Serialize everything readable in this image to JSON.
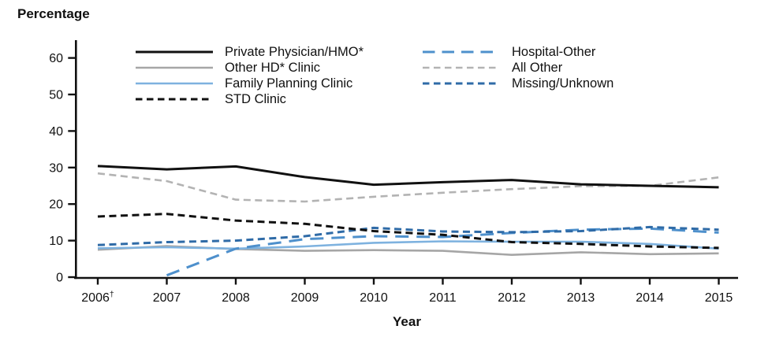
{
  "figure": {
    "y_axis_title": "Percentage",
    "x_axis_title": "Year"
  },
  "chart_data": {
    "type": "line",
    "title": "Percentage",
    "xlabel": "Year",
    "ylabel": "Percentage",
    "ylim": [
      0,
      60
    ],
    "yticks": [
      0,
      10,
      20,
      30,
      40,
      50,
      60
    ],
    "grid": false,
    "legend_position": "top-inside",
    "categories": [
      "2006",
      "2007",
      "2008",
      "2009",
      "2010",
      "2011",
      "2012",
      "2013",
      "2014",
      "2015"
    ],
    "x_footnote_marker": {
      "category": "2006",
      "marker": "†"
    },
    "series": [
      {
        "name": "Private Physician/HMO*",
        "color": "#111111",
        "line_style": "solid",
        "width": 3,
        "legend_column": 1,
        "z": 7,
        "values": [
          30.4,
          29.5,
          30.3,
          27.4,
          25.3,
          26.0,
          26.6,
          25.4,
          25.0,
          24.6
        ]
      },
      {
        "name": "Other HD* Clinic",
        "color": "#A6A6A6",
        "line_style": "solid",
        "width": 2.6,
        "legend_column": 1,
        "z": 2,
        "values": [
          7.5,
          8.5,
          7.7,
          7.2,
          7.4,
          7.2,
          6.1,
          6.8,
          6.3,
          6.5
        ]
      },
      {
        "name": "Family Planning Clinic",
        "color": "#7EB2DF",
        "line_style": "solid",
        "width": 2.6,
        "legend_column": 1,
        "z": 3,
        "values": [
          7.9,
          8.2,
          7.8,
          8.4,
          9.4,
          9.8,
          9.7,
          9.7,
          9.1,
          7.8
        ]
      },
      {
        "name": "STD Clinic",
        "color": "#111111",
        "line_style": "dash",
        "width": 3,
        "legend_column": 1,
        "z": 6,
        "values": [
          16.6,
          17.3,
          15.5,
          14.6,
          12.6,
          11.6,
          9.6,
          9.1,
          8.4,
          8.0
        ]
      },
      {
        "name": "Hospital-Other",
        "color": "#4E90CC",
        "line_style": "longdash",
        "width": 3,
        "legend_column": 2,
        "z": 4,
        "values": [
          null,
          0.5,
          7.8,
          10.4,
          11.2,
          11.0,
          12.1,
          13.0,
          13.3,
          12.2
        ]
      },
      {
        "name": "All Other",
        "color": "#B3B3B3",
        "line_style": "dash",
        "width": 2.6,
        "legend_column": 2,
        "z": 1,
        "values": [
          28.4,
          26.3,
          21.2,
          20.7,
          22.0,
          23.1,
          24.1,
          24.9,
          25.0,
          27.3
        ]
      },
      {
        "name": "Missing/Unknown",
        "color": "#2F6BA7",
        "line_style": "dash",
        "width": 3,
        "legend_column": 2,
        "z": 5,
        "values": [
          8.8,
          9.6,
          10.0,
          11.2,
          13.5,
          12.5,
          12.3,
          12.6,
          13.7,
          13.0
        ]
      }
    ]
  }
}
